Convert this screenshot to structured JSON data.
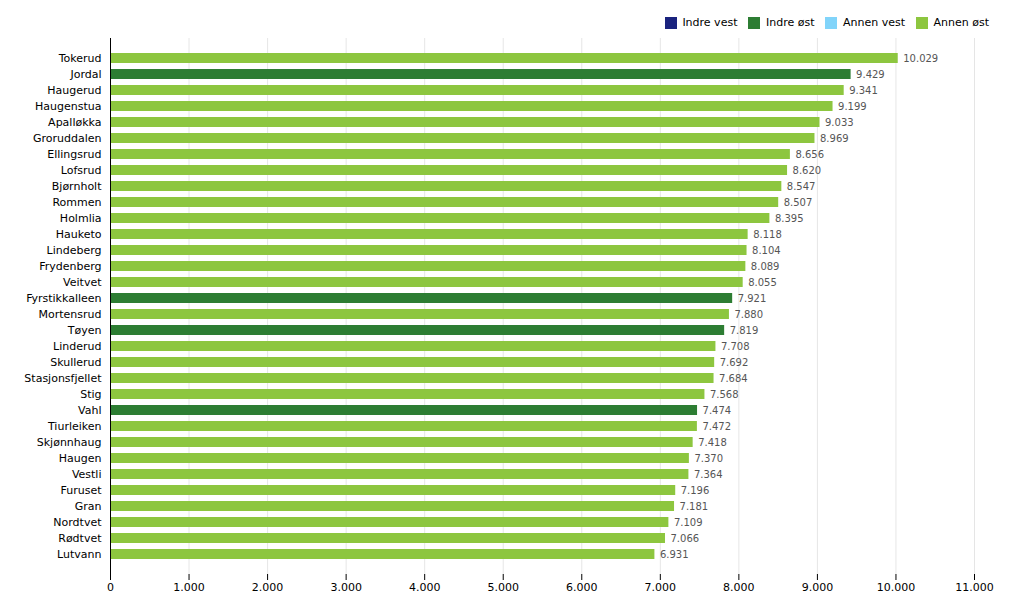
{
  "chart_data": {
    "type": "bar",
    "orientation": "horizontal",
    "categories": [
      "Tokerud",
      "Jordal",
      "Haugerud",
      "Haugenstua",
      "Apalløkka",
      "Groruddalen",
      "Ellingsrud",
      "Lofsrud",
      "Bjørnholt",
      "Rommen",
      "Holmlia",
      "Hauketo",
      "Lindeberg",
      "Frydenberg",
      "Veitvet",
      "Fyrstikkalleen",
      "Mortensrud",
      "Tøyen",
      "Linderud",
      "Skullerud",
      "Stasjonsfjellet",
      "Stig",
      "Vahl",
      "Tiurleiken",
      "Skjønnhaug",
      "Haugen",
      "Vestli",
      "Furuset",
      "Gran",
      "Nordtvet",
      "Rødtvet",
      "Lutvann"
    ],
    "series": [
      {
        "name": "Indre vest",
        "color": "#1a237e",
        "values": [
          null,
          null,
          null,
          null,
          null,
          null,
          null,
          null,
          null,
          null,
          null,
          null,
          null,
          null,
          null,
          null,
          null,
          null,
          null,
          null,
          null,
          null,
          null,
          null,
          null,
          null,
          null,
          null,
          null,
          null,
          null,
          null
        ],
        "value_labels": [
          null,
          null,
          null,
          null,
          null,
          null,
          null,
          null,
          null,
          null,
          null,
          null,
          null,
          null,
          null,
          null,
          null,
          null,
          null,
          null,
          null,
          null,
          null,
          null,
          null,
          null,
          null,
          null,
          null,
          null,
          null,
          null
        ]
      },
      {
        "name": "Indre øst",
        "color": "#2d7d33",
        "values": [
          null,
          9.429,
          null,
          null,
          null,
          null,
          null,
          null,
          null,
          null,
          null,
          null,
          null,
          null,
          null,
          7.921,
          null,
          7.819,
          null,
          null,
          null,
          null,
          7.474,
          null,
          null,
          null,
          null,
          null,
          null,
          null,
          null,
          null
        ],
        "value_labels": [
          null,
          "9.429",
          null,
          null,
          null,
          null,
          null,
          null,
          null,
          null,
          null,
          null,
          null,
          null,
          null,
          "7.921",
          null,
          "7.819",
          null,
          null,
          null,
          null,
          "7.474",
          null,
          null,
          null,
          null,
          null,
          null,
          null,
          null,
          null
        ]
      },
      {
        "name": "Annen vest",
        "color": "#81d4fa",
        "values": [
          null,
          null,
          null,
          null,
          null,
          null,
          null,
          null,
          null,
          null,
          null,
          null,
          null,
          null,
          null,
          null,
          null,
          null,
          null,
          null,
          null,
          null,
          null,
          null,
          null,
          null,
          null,
          null,
          null,
          null,
          null,
          null
        ],
        "value_labels": [
          null,
          null,
          null,
          null,
          null,
          null,
          null,
          null,
          null,
          null,
          null,
          null,
          null,
          null,
          null,
          null,
          null,
          null,
          null,
          null,
          null,
          null,
          null,
          null,
          null,
          null,
          null,
          null,
          null,
          null,
          null,
          null
        ]
      },
      {
        "name": "Annen øst",
        "color": "#8dc63f",
        "values": [
          10.029,
          null,
          9.341,
          9.199,
          9.033,
          8.969,
          8.656,
          8.62,
          8.547,
          8.507,
          8.395,
          8.118,
          8.104,
          8.089,
          8.055,
          null,
          7.88,
          null,
          7.708,
          7.692,
          7.684,
          7.568,
          null,
          7.472,
          7.418,
          7.37,
          7.364,
          7.196,
          7.181,
          7.109,
          7.066,
          6.931
        ],
        "value_labels": [
          "10.029",
          null,
          "9.341",
          "9.199",
          "9.033",
          "8.969",
          "8.656",
          "8.620",
          "8.547",
          "8.507",
          "8.395",
          "8.118",
          "8.104",
          "8.089",
          "8.055",
          null,
          "7.880",
          null,
          "7.708",
          "7.692",
          "7.684",
          "7.568",
          null,
          "7.472",
          "7.418",
          "7.370",
          "7.364",
          "7.196",
          "7.181",
          "7.109",
          "7.066",
          "6.931"
        ]
      }
    ],
    "xlim": [
      0,
      11
    ],
    "xticks": [
      0,
      {
        "value": 1,
        "label": "1.000"
      },
      {
        "value": 2,
        "label": "2.000"
      },
      {
        "value": 3,
        "label": "3.000"
      },
      {
        "value": 4,
        "label": "4.000"
      },
      {
        "value": 5,
        "label": "5.000"
      },
      {
        "value": 6,
        "label": "6.000"
      },
      {
        "value": 7,
        "label": "7.000"
      },
      {
        "value": 8,
        "label": "8.000"
      },
      {
        "value": 9,
        "label": "9.000"
      },
      {
        "value": 10,
        "label": "10.000"
      },
      {
        "value": 11,
        "label": "11.000"
      }
    ],
    "grid": true,
    "legend": "upper right",
    "data_labels": true
  }
}
